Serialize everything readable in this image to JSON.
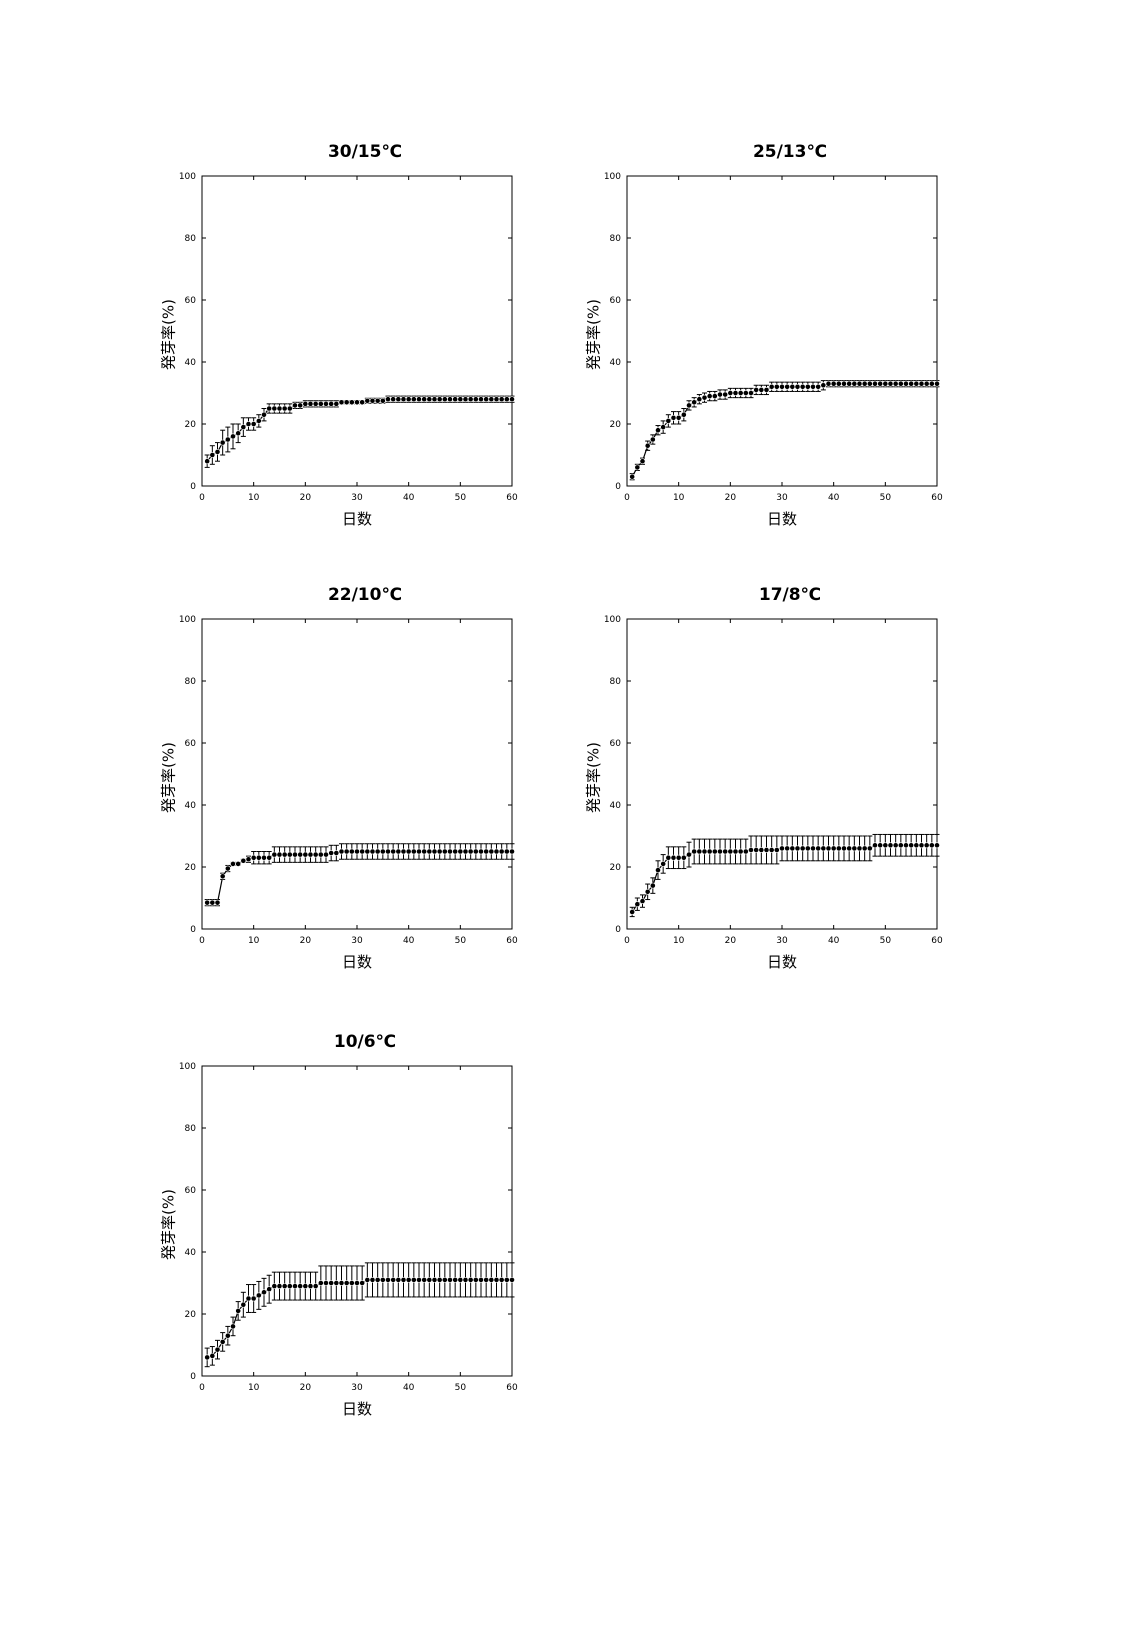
{
  "chart_data": [
    {
      "type": "line",
      "title": "30/15℃",
      "xlabel": "日数",
      "ylabel": "発芽率(%)",
      "xlim": [
        0,
        60
      ],
      "ylim": [
        0,
        100
      ],
      "xticks": [
        0,
        10,
        20,
        30,
        40,
        50,
        60
      ],
      "yticks": [
        0,
        20,
        40,
        60,
        80,
        100
      ],
      "grid": false,
      "error_bars": true,
      "series": [
        {
          "x": [
            1,
            2,
            3,
            4,
            5,
            6,
            7,
            8,
            9,
            10,
            11,
            12,
            13,
            14,
            15,
            16,
            17,
            18,
            19,
            20,
            21,
            22,
            23,
            24,
            25,
            26,
            27,
            28,
            29,
            30,
            31,
            32,
            33,
            34,
            35,
            36,
            37,
            38,
            39,
            40,
            41,
            42,
            43,
            44,
            45,
            46,
            47,
            48,
            49,
            50,
            51,
            52,
            53,
            54,
            55,
            56,
            57,
            58,
            59,
            60
          ],
          "y": [
            8,
            10,
            11,
            14,
            15,
            16,
            17,
            19,
            20,
            20,
            21,
            23,
            25,
            25,
            25,
            25,
            25,
            26,
            26,
            26.5,
            26.5,
            26.5,
            26.5,
            26.5,
            26.5,
            26.5,
            27,
            27,
            27,
            27,
            27,
            27.5,
            27.5,
            27.5,
            27.5,
            28,
            28,
            28,
            28,
            28,
            28,
            28,
            28,
            28,
            28,
            28,
            28,
            28,
            28,
            28,
            28,
            28,
            28,
            28,
            28,
            28,
            28,
            28,
            28,
            28
          ],
          "err": [
            2,
            3,
            3,
            4,
            4,
            4,
            3,
            3,
            2,
            2,
            2,
            2,
            1.5,
            1.5,
            1.5,
            1.5,
            1.5,
            1,
            1,
            1,
            1,
            1,
            1,
            1,
            1,
            1,
            0.5,
            0.5,
            0.5,
            0.5,
            0.5,
            0.8,
            0.8,
            0.8,
            0.8,
            1,
            1,
            1,
            1,
            1,
            1,
            1,
            1,
            1,
            1,
            1,
            1,
            1,
            1,
            1,
            1,
            1,
            1,
            1,
            1,
            1,
            1,
            1,
            1,
            1
          ]
        }
      ]
    },
    {
      "type": "line",
      "title": "25/13℃",
      "xlabel": "日数",
      "ylabel": "発芽率(%)",
      "xlim": [
        0,
        60
      ],
      "ylim": [
        0,
        100
      ],
      "xticks": [
        0,
        10,
        20,
        30,
        40,
        50,
        60
      ],
      "yticks": [
        0,
        20,
        40,
        60,
        80,
        100
      ],
      "grid": false,
      "error_bars": true,
      "series": [
        {
          "x": [
            1,
            2,
            3,
            4,
            5,
            6,
            7,
            8,
            9,
            10,
            11,
            12,
            13,
            14,
            15,
            16,
            17,
            18,
            19,
            20,
            21,
            22,
            23,
            24,
            25,
            26,
            27,
            28,
            29,
            30,
            31,
            32,
            33,
            34,
            35,
            36,
            37,
            38,
            39,
            40,
            41,
            42,
            43,
            44,
            45,
            46,
            47,
            48,
            49,
            50,
            51,
            52,
            53,
            54,
            55,
            56,
            57,
            58,
            59,
            60
          ],
          "y": [
            3,
            6,
            8,
            13,
            15,
            18,
            19,
            21,
            22,
            22,
            23,
            26,
            27,
            28,
            28.5,
            29,
            29,
            29.5,
            29.5,
            30,
            30,
            30,
            30,
            30,
            31,
            31,
            31,
            32,
            32,
            32,
            32,
            32,
            32,
            32,
            32,
            32,
            32,
            32.5,
            33,
            33,
            33,
            33,
            33,
            33,
            33,
            33,
            33,
            33,
            33,
            33,
            33,
            33,
            33,
            33,
            33,
            33,
            33,
            33,
            33,
            33
          ],
          "err": [
            1,
            1,
            1,
            1.5,
            1.5,
            1.5,
            2,
            2,
            2,
            2,
            2,
            1.5,
            1.5,
            1.5,
            1.5,
            1.5,
            1.5,
            1.5,
            1.5,
            1.5,
            1.5,
            1.5,
            1.5,
            1.5,
            1.5,
            1.5,
            1.5,
            1.5,
            1.5,
            1.5,
            1.5,
            1.5,
            1.5,
            1.5,
            1.5,
            1.5,
            1.5,
            1.5,
            1,
            1,
            1,
            1,
            1,
            1,
            1,
            1,
            1,
            1,
            1,
            1,
            1,
            1,
            1,
            1,
            1,
            1,
            1,
            1,
            1,
            1
          ]
        }
      ]
    },
    {
      "type": "line",
      "title": "22/10℃",
      "xlabel": "日数",
      "ylabel": "発芽率(%)",
      "xlim": [
        0,
        60
      ],
      "ylim": [
        0,
        100
      ],
      "xticks": [
        0,
        10,
        20,
        30,
        40,
        50,
        60
      ],
      "yticks": [
        0,
        20,
        40,
        60,
        80,
        100
      ],
      "grid": false,
      "error_bars": true,
      "series": [
        {
          "x": [
            1,
            2,
            3,
            4,
            5,
            6,
            7,
            8,
            9,
            10,
            11,
            12,
            13,
            14,
            15,
            16,
            17,
            18,
            19,
            20,
            21,
            22,
            23,
            24,
            25,
            26,
            27,
            28,
            29,
            30,
            31,
            32,
            33,
            34,
            35,
            36,
            37,
            38,
            39,
            40,
            41,
            42,
            43,
            44,
            45,
            46,
            47,
            48,
            49,
            50,
            51,
            52,
            53,
            54,
            55,
            56,
            57,
            58,
            59,
            60
          ],
          "y": [
            8.5,
            8.5,
            8.5,
            17,
            19.5,
            21,
            21,
            22,
            22.5,
            23,
            23,
            23,
            23,
            24,
            24,
            24,
            24,
            24,
            24,
            24,
            24,
            24,
            24,
            24,
            24.5,
            24.5,
            25,
            25,
            25,
            25,
            25,
            25,
            25,
            25,
            25,
            25,
            25,
            25,
            25,
            25,
            25,
            25,
            25,
            25,
            25,
            25,
            25,
            25,
            25,
            25,
            25,
            25,
            25,
            25,
            25,
            25,
            25,
            25,
            25,
            25
          ],
          "err": [
            1,
            1,
            1,
            1,
            1,
            0.5,
            0.5,
            0.5,
            1,
            2,
            2,
            2,
            2,
            2.5,
            2.5,
            2.5,
            2.5,
            2.5,
            2.5,
            2.5,
            2.5,
            2.5,
            2.5,
            2.5,
            2.5,
            2.5,
            2.5,
            2.5,
            2.5,
            2.5,
            2.5,
            2.5,
            2.5,
            2.5,
            2.5,
            2.5,
            2.5,
            2.5,
            2.5,
            2.5,
            2.5,
            2.5,
            2.5,
            2.5,
            2.5,
            2.5,
            2.5,
            2.5,
            2.5,
            2.5,
            2.5,
            2.5,
            2.5,
            2.5,
            2.5,
            2.5,
            2.5,
            2.5,
            2.5,
            2.5
          ]
        }
      ]
    },
    {
      "type": "line",
      "title": "17/8℃",
      "xlabel": "日数",
      "ylabel": "発芽率(%)",
      "xlim": [
        0,
        60
      ],
      "ylim": [
        0,
        100
      ],
      "xticks": [
        0,
        10,
        20,
        30,
        40,
        50,
        60
      ],
      "yticks": [
        0,
        20,
        40,
        60,
        80,
        100
      ],
      "grid": false,
      "error_bars": true,
      "series": [
        {
          "x": [
            1,
            2,
            3,
            4,
            5,
            6,
            7,
            8,
            9,
            10,
            11,
            12,
            13,
            14,
            15,
            16,
            17,
            18,
            19,
            20,
            21,
            22,
            23,
            24,
            25,
            26,
            27,
            28,
            29,
            30,
            31,
            32,
            33,
            34,
            35,
            36,
            37,
            38,
            39,
            40,
            41,
            42,
            43,
            44,
            45,
            46,
            47,
            48,
            49,
            50,
            51,
            52,
            53,
            54,
            55,
            56,
            57,
            58,
            59,
            60
          ],
          "y": [
            5.5,
            8,
            9,
            12,
            14,
            19,
            21,
            23,
            23,
            23,
            23,
            24,
            25,
            25,
            25,
            25,
            25,
            25,
            25,
            25,
            25,
            25,
            25,
            25.5,
            25.5,
            25.5,
            25.5,
            25.5,
            25.5,
            26,
            26,
            26,
            26,
            26,
            26,
            26,
            26,
            26,
            26,
            26,
            26,
            26,
            26,
            26,
            26,
            26,
            26,
            27,
            27,
            27,
            27,
            27,
            27,
            27,
            27,
            27,
            27,
            27,
            27,
            27
          ],
          "err": [
            1.5,
            2,
            2,
            2.5,
            2.5,
            3,
            3,
            3.5,
            3.5,
            3.5,
            3.5,
            4,
            4,
            4,
            4,
            4,
            4,
            4,
            4,
            4,
            4,
            4,
            4,
            4.5,
            4.5,
            4.5,
            4.5,
            4.5,
            4.5,
            4,
            4,
            4,
            4,
            4,
            4,
            4,
            4,
            4,
            4,
            4,
            4,
            4,
            4,
            4,
            4,
            4,
            4,
            3.5,
            3.5,
            3.5,
            3.5,
            3.5,
            3.5,
            3.5,
            3.5,
            3.5,
            3.5,
            3.5,
            3.5,
            3.5
          ]
        }
      ]
    },
    {
      "type": "line",
      "title": "10/6℃",
      "xlabel": "日数",
      "ylabel": "発芽率(%)",
      "xlim": [
        0,
        60
      ],
      "ylim": [
        0,
        100
      ],
      "xticks": [
        0,
        10,
        20,
        30,
        40,
        50,
        60
      ],
      "yticks": [
        0,
        20,
        40,
        60,
        80,
        100
      ],
      "grid": false,
      "error_bars": true,
      "series": [
        {
          "x": [
            1,
            2,
            3,
            4,
            5,
            6,
            7,
            8,
            9,
            10,
            11,
            12,
            13,
            14,
            15,
            16,
            17,
            18,
            19,
            20,
            21,
            22,
            23,
            24,
            25,
            26,
            27,
            28,
            29,
            30,
            31,
            32,
            33,
            34,
            35,
            36,
            37,
            38,
            39,
            40,
            41,
            42,
            43,
            44,
            45,
            46,
            47,
            48,
            49,
            50,
            51,
            52,
            53,
            54,
            55,
            56,
            57,
            58,
            59,
            60
          ],
          "y": [
            6,
            6.5,
            8.5,
            11,
            13,
            16,
            21,
            23,
            25,
            25,
            26,
            27,
            28,
            29,
            29,
            29,
            29,
            29,
            29,
            29,
            29,
            29,
            30,
            30,
            30,
            30,
            30,
            30,
            30,
            30,
            30,
            31,
            31,
            31,
            31,
            31,
            31,
            31,
            31,
            31,
            31,
            31,
            31,
            31,
            31,
            31,
            31,
            31,
            31,
            31,
            31,
            31,
            31,
            31,
            31,
            31,
            31,
            31,
            31,
            31
          ],
          "err": [
            3,
            3,
            3,
            3,
            3,
            3,
            3,
            4,
            4.5,
            4.5,
            4.5,
            4.5,
            4.5,
            4.5,
            4.5,
            4.5,
            4.5,
            4.5,
            4.5,
            4.5,
            4.5,
            4.5,
            5.5,
            5.5,
            5.5,
            5.5,
            5.5,
            5.5,
            5.5,
            5.5,
            5.5,
            5.5,
            5.5,
            5.5,
            5.5,
            5.5,
            5.5,
            5.5,
            5.5,
            5.5,
            5.5,
            5.5,
            5.5,
            5.5,
            5.5,
            5.5,
            5.5,
            5.5,
            5.5,
            5.5,
            5.5,
            5.5,
            5.5,
            5.5,
            5.5,
            5.5,
            5.5,
            5.5,
            5.5,
            5.5
          ]
        }
      ]
    }
  ]
}
